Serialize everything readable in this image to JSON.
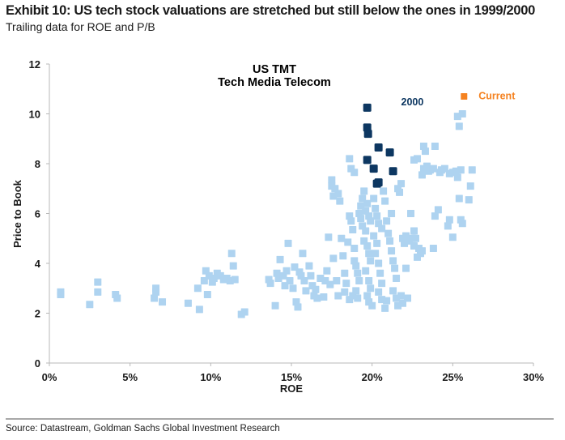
{
  "header": {
    "title": "Exhibit 10: US tech stock valuations are stretched but still below the ones in 1999/2000",
    "subtitle": "Trailing data for ROE and P/B"
  },
  "footer": {
    "source": "Source: Datastream, Goldman Sachs Global Investment Research"
  },
  "chart_data": {
    "type": "scatter",
    "title": "US TMT",
    "subtitle": "Tech Media Telecom",
    "xlabel": "ROE",
    "ylabel": "Price to Book",
    "xlim": [
      0,
      30
    ],
    "ylim": [
      0,
      12
    ],
    "x_ticks": [
      "0%",
      "5%",
      "10%",
      "15%",
      "20%",
      "25%",
      "30%"
    ],
    "x_tick_values": [
      0,
      5,
      10,
      15,
      20,
      25,
      30
    ],
    "y_ticks": [
      "0",
      "2",
      "4",
      "6",
      "8",
      "10",
      "12"
    ],
    "y_tick_values": [
      0,
      2,
      4,
      6,
      8,
      10,
      12
    ],
    "grid": false,
    "annotations": [
      {
        "text": "2000",
        "series": "2000",
        "x": 21.8,
        "y": 10.5
      },
      {
        "text": "Current",
        "series": "Current",
        "x": 26.6,
        "y": 10.75
      }
    ],
    "series": [
      {
        "name": "History",
        "color": "#aed3f0",
        "points": [
          [
            0.7,
            2.85
          ],
          [
            0.7,
            2.75
          ],
          [
            2.5,
            2.35
          ],
          [
            3.0,
            3.25
          ],
          [
            3.0,
            2.85
          ],
          [
            4.1,
            2.75
          ],
          [
            4.2,
            2.6
          ],
          [
            6.5,
            2.6
          ],
          [
            6.6,
            3.0
          ],
          [
            6.6,
            2.85
          ],
          [
            7.0,
            2.45
          ],
          [
            8.6,
            2.4
          ],
          [
            9.2,
            3.0
          ],
          [
            9.3,
            2.15
          ],
          [
            9.6,
            3.3
          ],
          [
            9.7,
            3.7
          ],
          [
            9.8,
            2.75
          ],
          [
            9.9,
            3.5
          ],
          [
            10.1,
            3.25
          ],
          [
            10.2,
            3.4
          ],
          [
            10.4,
            3.6
          ],
          [
            10.6,
            3.5
          ],
          [
            10.8,
            3.35
          ],
          [
            11.0,
            3.4
          ],
          [
            11.2,
            3.3
          ],
          [
            11.3,
            4.4
          ],
          [
            11.4,
            3.9
          ],
          [
            11.5,
            3.35
          ],
          [
            11.9,
            1.95
          ],
          [
            12.1,
            2.05
          ],
          [
            13.6,
            3.35
          ],
          [
            13.7,
            3.2
          ],
          [
            14.0,
            2.3
          ],
          [
            14.1,
            3.6
          ],
          [
            14.2,
            3.4
          ],
          [
            14.3,
            4.15
          ],
          [
            14.5,
            3.5
          ],
          [
            14.6,
            3.1
          ],
          [
            14.7,
            3.7
          ],
          [
            14.8,
            4.8
          ],
          [
            14.9,
            3.3
          ],
          [
            15.1,
            3.0
          ],
          [
            15.2,
            3.85
          ],
          [
            15.3,
            2.45
          ],
          [
            15.4,
            2.25
          ],
          [
            15.5,
            3.65
          ],
          [
            15.6,
            3.5
          ],
          [
            15.7,
            4.4
          ],
          [
            15.8,
            3.3
          ],
          [
            15.9,
            2.9
          ],
          [
            16.1,
            3.9
          ],
          [
            16.2,
            3.5
          ],
          [
            16.3,
            3.1
          ],
          [
            16.4,
            2.7
          ],
          [
            16.5,
            2.95
          ],
          [
            16.6,
            2.6
          ],
          [
            16.8,
            3.4
          ],
          [
            17.1,
            3.3
          ],
          [
            17.2,
            3.7
          ],
          [
            17.4,
            3.15
          ],
          [
            17.6,
            4.2
          ],
          [
            17.8,
            3.3
          ],
          [
            17.9,
            2.7
          ],
          [
            17.0,
            2.65
          ],
          [
            17.3,
            5.05
          ],
          [
            17.5,
            7.35
          ],
          [
            17.5,
            7.1
          ],
          [
            17.6,
            6.7
          ],
          [
            17.7,
            7.0
          ],
          [
            17.9,
            6.8
          ],
          [
            18.0,
            6.5
          ],
          [
            18.1,
            5.0
          ],
          [
            18.2,
            4.3
          ],
          [
            18.3,
            3.6
          ],
          [
            18.4,
            3.2
          ],
          [
            18.3,
            2.85
          ],
          [
            18.6,
            2.55
          ],
          [
            18.8,
            2.7
          ],
          [
            18.6,
            8.2
          ],
          [
            18.7,
            7.8
          ],
          [
            18.9,
            7.65
          ],
          [
            18.6,
            5.9
          ],
          [
            18.7,
            5.7
          ],
          [
            18.8,
            5.35
          ],
          [
            18.9,
            4.6
          ],
          [
            18.5,
            4.85
          ],
          [
            18.9,
            4.1
          ],
          [
            19.0,
            3.9
          ],
          [
            19.1,
            3.6
          ],
          [
            19.2,
            3.3
          ],
          [
            19.0,
            2.9
          ],
          [
            19.1,
            2.6
          ],
          [
            19.2,
            6.0
          ],
          [
            19.3,
            6.3
          ],
          [
            19.4,
            6.6
          ],
          [
            19.5,
            6.9
          ],
          [
            19.3,
            5.8
          ],
          [
            19.4,
            5.5
          ],
          [
            19.6,
            5.3
          ],
          [
            19.6,
            6.1
          ],
          [
            19.7,
            6.4
          ],
          [
            19.8,
            5.9
          ],
          [
            19.9,
            5.7
          ],
          [
            19.5,
            4.9
          ],
          [
            19.7,
            4.7
          ],
          [
            19.8,
            4.4
          ],
          [
            19.9,
            4.1
          ],
          [
            19.6,
            3.7
          ],
          [
            19.8,
            3.3
          ],
          [
            19.9,
            3.0
          ],
          [
            19.7,
            2.7
          ],
          [
            19.8,
            2.45
          ],
          [
            20.0,
            2.3
          ],
          [
            20.1,
            6.6
          ],
          [
            20.2,
            6.2
          ],
          [
            20.3,
            5.9
          ],
          [
            20.4,
            5.6
          ],
          [
            20.1,
            5.1
          ],
          [
            20.3,
            4.8
          ],
          [
            20.2,
            4.4
          ],
          [
            20.4,
            4.0
          ],
          [
            20.5,
            3.6
          ],
          [
            20.6,
            3.2
          ],
          [
            20.4,
            2.85
          ],
          [
            20.6,
            2.55
          ],
          [
            20.8,
            2.2
          ],
          [
            20.9,
            2.5
          ],
          [
            20.7,
            6.9
          ],
          [
            20.8,
            6.5
          ],
          [
            20.9,
            5.7
          ],
          [
            21.0,
            5.2
          ],
          [
            21.1,
            4.9
          ],
          [
            21.2,
            4.5
          ],
          [
            21.3,
            4.1
          ],
          [
            21.4,
            3.8
          ],
          [
            21.5,
            3.4
          ],
          [
            21.3,
            2.9
          ],
          [
            21.5,
            2.6
          ],
          [
            21.6,
            2.3
          ],
          [
            21.8,
            2.7
          ],
          [
            21.9,
            2.4
          ],
          [
            21.6,
            7.0
          ],
          [
            21.7,
            6.85
          ],
          [
            21.8,
            7.2
          ],
          [
            21.9,
            5.0
          ],
          [
            22.0,
            4.8
          ],
          [
            22.1,
            5.1
          ],
          [
            22.3,
            4.9
          ],
          [
            22.1,
            3.8
          ],
          [
            22.2,
            2.6
          ],
          [
            22.4,
            6.0
          ],
          [
            22.6,
            8.15
          ],
          [
            22.8,
            8.2
          ],
          [
            22.5,
            5.0
          ],
          [
            22.6,
            4.7
          ],
          [
            22.7,
            5.0
          ],
          [
            22.9,
            4.6
          ],
          [
            23.0,
            4.4
          ],
          [
            22.8,
            4.25
          ],
          [
            23.1,
            4.5
          ],
          [
            23.2,
            8.7
          ],
          [
            23.3,
            8.5
          ],
          [
            23.2,
            7.8
          ],
          [
            23.4,
            7.9
          ],
          [
            23.5,
            7.7
          ],
          [
            23.6,
            7.75
          ],
          [
            23.8,
            7.8
          ],
          [
            23.9,
            8.7
          ],
          [
            24.2,
            7.65
          ],
          [
            24.3,
            7.75
          ],
          [
            24.5,
            7.8
          ],
          [
            24.8,
            7.6
          ],
          [
            24.1,
            6.15
          ],
          [
            25.0,
            7.65
          ],
          [
            25.2,
            7.7
          ],
          [
            23.8,
            4.6
          ],
          [
            25.3,
            7.45
          ],
          [
            25.5,
            7.75
          ],
          [
            25.4,
            6.6
          ],
          [
            25.5,
            5.75
          ],
          [
            25.6,
            5.6
          ],
          [
            24.8,
            5.75
          ],
          [
            24.7,
            5.5
          ],
          [
            25.0,
            5.05
          ],
          [
            25.3,
            9.9
          ],
          [
            25.6,
            10.0
          ],
          [
            25.4,
            9.5
          ],
          [
            26.2,
            7.75
          ],
          [
            26.1,
            7.1
          ],
          [
            26.0,
            6.55
          ],
          [
            23.1,
            7.55
          ],
          [
            23.9,
            5.9
          ],
          [
            22.6,
            5.3
          ],
          [
            21.2,
            6.0
          ],
          [
            20.6,
            5.4
          ]
        ]
      },
      {
        "name": "2000",
        "color": "#0d3761",
        "points": [
          [
            19.7,
            10.25
          ],
          [
            19.7,
            9.45
          ],
          [
            19.75,
            9.2
          ],
          [
            20.4,
            8.65
          ],
          [
            21.1,
            8.45
          ],
          [
            19.7,
            8.15
          ],
          [
            20.1,
            7.8
          ],
          [
            21.3,
            7.7
          ],
          [
            20.4,
            7.25
          ],
          [
            20.3,
            7.2
          ]
        ]
      },
      {
        "name": "Current",
        "color": "#f58220",
        "points": [
          [
            25.7,
            10.7
          ]
        ]
      }
    ]
  }
}
